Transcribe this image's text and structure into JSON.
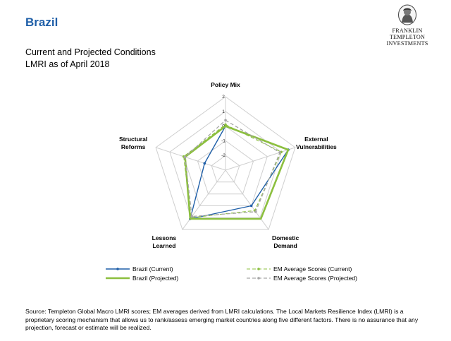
{
  "header": {
    "title": "Brazil",
    "subtitle_line1": "Current and Projected Conditions",
    "subtitle_line2": "LMRI as of April 2018"
  },
  "logo": {
    "line1": "FRANKLIN TEMPLETON",
    "line2": "INVESTMENTS"
  },
  "chart_data": {
    "type": "radar",
    "axes": [
      {
        "label_lines": [
          "Policy Mix"
        ]
      },
      {
        "label_lines": [
          "External",
          "Vulnerabilities"
        ]
      },
      {
        "label_lines": [
          "Domestic",
          "Demand"
        ]
      },
      {
        "label_lines": [
          "Lessons",
          "Learned"
        ]
      },
      {
        "label_lines": [
          "Structural",
          "Reforms"
        ]
      }
    ],
    "ticks": [
      "2",
      "1",
      "0",
      "-1",
      "-2"
    ],
    "rmin": -3,
    "rmax": 2,
    "series": [
      {
        "name": "Brazil (Current)",
        "values": [
          0.0,
          1.5,
          0.0,
          1.1,
          -1.5
        ],
        "color": "#1f5fa8",
        "dashed": false,
        "marker": true,
        "width": 1.4
      },
      {
        "name": "Brazil (Projected)",
        "values": [
          0.0,
          1.5,
          1.1,
          1.1,
          -0.1
        ],
        "color": "#8cbf3f",
        "dashed": false,
        "marker": false,
        "width": 2.6
      },
      {
        "name": "EM Average Scores (Current)",
        "values": [
          0.1,
          1.0,
          0.4,
          1.0,
          0.0
        ],
        "color": "#8cbf3f",
        "dashed": true,
        "marker": true,
        "width": 1.1
      },
      {
        "name": "EM Average Scores (Projected)",
        "values": [
          0.4,
          0.9,
          0.5,
          0.9,
          -0.1
        ],
        "color": "#a6a6a6",
        "dashed": true,
        "marker": true,
        "width": 1.3
      }
    ],
    "legend_position": "bottom",
    "grid": true
  },
  "source_text": "Source: Templeton Global Macro LMRI scores; EM averages derived from LMRI calculations. The Local Markets Resilience Index (LMRI) is a proprietary scoring mechanism that allows us to rank/assess emerging market countries along five different factors. There is no assurance that any projection, forecast or estimate will be realized."
}
